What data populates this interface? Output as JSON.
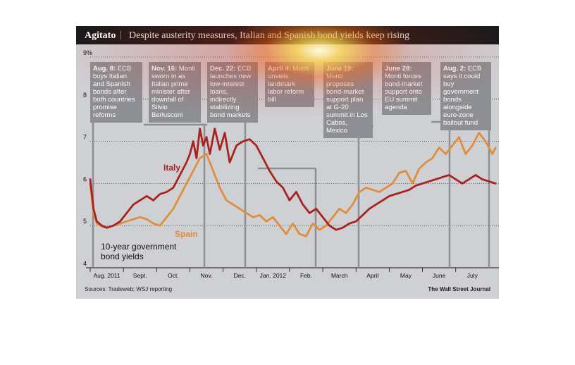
{
  "header": {
    "title": "Agitato",
    "separator": "|",
    "subtitle": "Despite austerity measures, Italian and Spanish bond yields keep rising"
  },
  "caption": "10-year government bond yields",
  "footer": {
    "source": "Sources: Tradeweb; WSJ reporting",
    "brand": "The Wall Street Journal"
  },
  "colors": {
    "italy": "#a8231f",
    "spain": "#e08d3c",
    "background": "#cfd0d4",
    "annotation_box": "#8d8f94",
    "header": "#1a1a1a"
  },
  "annotations": [
    {
      "date": "Aug. 8:",
      "text": "ECB buys Italian and Spanish bonds after both countries promise reforms"
    },
    {
      "date": "Nov. 16:",
      "text": "Monti sworn in as Italian prime minister after downfall of Silvio Berlusconi"
    },
    {
      "date": "Dec. 22:",
      "text": "ECB launches new low-interest loans, indirectly stabilizing bond markets"
    },
    {
      "date": "April 4:",
      "text": "Monti unveils landmark labor reform bill"
    },
    {
      "date": "June 19:",
      "text": "Monti proposes bond-market support plan at G-20 summit in Los Cabos, Mexico"
    },
    {
      "date": "June 28:",
      "text": "Monti forces bond-market support onto EU summit agenda"
    },
    {
      "date": "Aug. 2:",
      "text": "ECB says it could buy government bonds alongside euro-zone bailout fund"
    }
  ],
  "chart_data": {
    "type": "line",
    "title": "Despite austerity measures, Italian and Spanish bond yields keep rising",
    "ylabel": "",
    "y_unit": "%",
    "ylim": [
      4,
      9
    ],
    "yticks": [
      "9%",
      "8",
      "7",
      "6",
      "5",
      "4"
    ],
    "x_tick_labels": [
      "Aug. 2011",
      "Sept.",
      "Oct.",
      "Nov.",
      "Dec.",
      "Jan. 2012",
      "Feb.",
      "March",
      "April",
      "May",
      "June",
      "July"
    ],
    "x_range_months": [
      0,
      12.3
    ],
    "legend": "inline labels",
    "grid": "horizontal dotted",
    "series": [
      {
        "name": "Italy",
        "x": [
          0.0,
          0.1,
          0.2,
          0.35,
          0.5,
          0.7,
          0.9,
          1.1,
          1.3,
          1.5,
          1.7,
          1.9,
          2.1,
          2.3,
          2.5,
          2.7,
          2.9,
          3.0,
          3.1,
          3.2,
          3.3,
          3.4,
          3.5,
          3.6,
          3.75,
          3.9,
          4.05,
          4.2,
          4.4,
          4.6,
          4.8,
          5.0,
          5.2,
          5.4,
          5.6,
          5.8,
          6.0,
          6.2,
          6.4,
          6.6,
          6.8,
          7.0,
          7.2,
          7.4,
          7.6,
          7.8,
          8.0,
          8.2,
          8.4,
          8.6,
          8.8,
          9.0,
          9.2,
          9.4,
          9.6,
          9.8,
          10.0,
          10.2,
          10.4,
          10.6,
          10.8,
          11.0,
          11.2,
          11.4,
          11.6,
          11.8,
          12.0,
          12.2
        ],
        "values": [
          6.1,
          5.4,
          5.1,
          5.0,
          4.95,
          5.0,
          5.1,
          5.3,
          5.5,
          5.6,
          5.7,
          5.6,
          5.75,
          5.8,
          5.9,
          6.2,
          6.5,
          6.7,
          7.0,
          6.6,
          7.3,
          6.9,
          7.1,
          6.7,
          7.3,
          6.8,
          7.2,
          6.5,
          6.9,
          7.0,
          7.05,
          6.9,
          6.6,
          6.3,
          6.05,
          5.9,
          5.6,
          5.8,
          5.5,
          5.3,
          5.4,
          5.2,
          5.0,
          4.9,
          4.95,
          5.05,
          5.1,
          5.25,
          5.4,
          5.5,
          5.6,
          5.7,
          5.75,
          5.8,
          5.85,
          5.95,
          6.0,
          6.05,
          6.1,
          6.15,
          6.2,
          6.1,
          6.0,
          6.1,
          6.2,
          6.1,
          6.05,
          6.0
        ]
      },
      {
        "name": "Spain",
        "x": [
          0.0,
          0.1,
          0.2,
          0.35,
          0.5,
          0.7,
          0.9,
          1.1,
          1.3,
          1.5,
          1.7,
          1.9,
          2.1,
          2.3,
          2.5,
          2.7,
          2.9,
          3.1,
          3.3,
          3.5,
          3.7,
          3.9,
          4.1,
          4.3,
          4.5,
          4.7,
          4.9,
          5.1,
          5.3,
          5.5,
          5.7,
          5.9,
          6.1,
          6.3,
          6.5,
          6.7,
          6.9,
          7.1,
          7.3,
          7.5,
          7.7,
          7.9,
          8.1,
          8.3,
          8.5,
          8.7,
          8.9,
          9.1,
          9.3,
          9.5,
          9.7,
          9.9,
          10.1,
          10.3,
          10.5,
          10.7,
          10.9,
          11.1,
          11.3,
          11.5,
          11.7,
          11.9,
          12.1,
          12.2
        ],
        "values": [
          6.0,
          5.3,
          5.05,
          4.98,
          4.95,
          5.0,
          5.05,
          5.1,
          5.15,
          5.2,
          5.15,
          5.05,
          5.0,
          5.2,
          5.4,
          5.7,
          6.0,
          6.3,
          6.6,
          6.7,
          6.3,
          5.9,
          5.6,
          5.5,
          5.4,
          5.3,
          5.2,
          5.25,
          5.1,
          5.2,
          5.0,
          4.8,
          5.05,
          4.8,
          4.75,
          5.05,
          4.9,
          5.0,
          5.2,
          5.4,
          5.3,
          5.5,
          5.8,
          5.9,
          5.85,
          5.8,
          5.9,
          6.0,
          6.25,
          6.3,
          6.0,
          6.35,
          6.5,
          6.6,
          6.85,
          6.7,
          6.9,
          7.1,
          6.7,
          6.9,
          7.2,
          7.0,
          6.7,
          6.85
        ]
      }
    ]
  }
}
